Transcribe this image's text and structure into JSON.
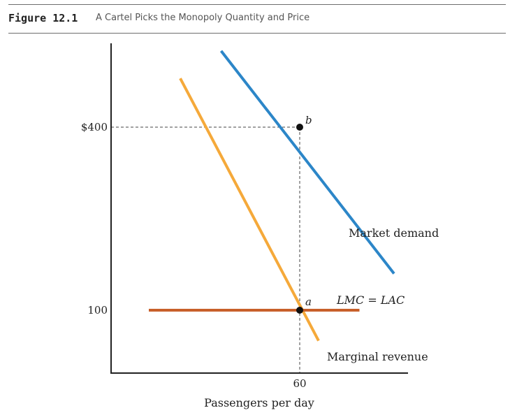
{
  "figure": {
    "label": "Figure 12.1",
    "title": "A Cartel Picks the Monopoly Quantity and Price"
  },
  "chart_data": {
    "type": "line",
    "title": "A Cartel Picks the Monopoly Quantity and Price",
    "xlabel": "Passengers per day",
    "ylabel": "",
    "grid": false,
    "y_ticks": [
      {
        "value": 400,
        "label": "$400"
      },
      {
        "value": 100,
        "label": "100"
      }
    ],
    "x_ticks": [
      {
        "value": 60,
        "label": "60"
      }
    ],
    "series": [
      {
        "name": "Market demand",
        "color": "#2c86c8",
        "points": [
          [
            35,
            525
          ],
          [
            90,
            160
          ]
        ]
      },
      {
        "name": "Marginal revenue",
        "color": "#f5a93a",
        "points": [
          [
            22,
            480
          ],
          [
            66,
            50
          ]
        ]
      },
      {
        "name": "LMC = LAC",
        "color": "#c8602a",
        "points": [
          [
            12,
            100
          ],
          [
            79,
            100
          ]
        ]
      }
    ],
    "points": [
      {
        "label": "b",
        "x": 60,
        "y": 400
      },
      {
        "label": "a",
        "x": 60,
        "y": 100
      }
    ]
  },
  "colors": {
    "demand": "#2c86c8",
    "marginal_revenue": "#f5a93a",
    "cost": "#c8602a",
    "axis": "#222222"
  }
}
